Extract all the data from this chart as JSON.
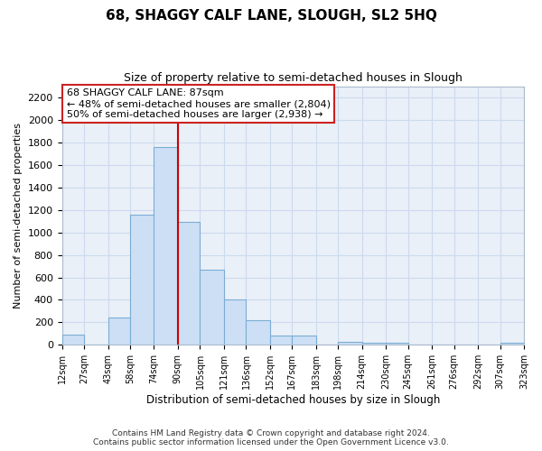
{
  "title": "68, SHAGGY CALF LANE, SLOUGH, SL2 5HQ",
  "subtitle": "Size of property relative to semi-detached houses in Slough",
  "xlabel": "Distribution of semi-detached houses by size in Slough",
  "ylabel": "Number of semi-detached properties",
  "bin_edges": [
    12,
    27,
    43,
    58,
    74,
    90,
    105,
    121,
    136,
    152,
    167,
    183,
    198,
    214,
    230,
    245,
    261,
    276,
    292,
    307,
    323
  ],
  "bin_labels": [
    "12sqm",
    "27sqm",
    "43sqm",
    "58sqm",
    "74sqm",
    "90sqm",
    "105sqm",
    "121sqm",
    "136sqm",
    "152sqm",
    "167sqm",
    "183sqm",
    "198sqm",
    "214sqm",
    "230sqm",
    "245sqm",
    "261sqm",
    "276sqm",
    "292sqm",
    "307sqm",
    "323sqm"
  ],
  "counts": [
    90,
    0,
    240,
    1160,
    1760,
    1090,
    670,
    400,
    220,
    85,
    80,
    0,
    30,
    20,
    15,
    0,
    0,
    0,
    0,
    20
  ],
  "bar_color": "#ccdff5",
  "bar_edge_color": "#7badd4",
  "vline_x": 90,
  "vline_color": "#cc0000",
  "annotation_title": "68 SHAGGY CALF LANE: 87sqm",
  "annotation_line1": "← 48% of semi-detached houses are smaller (2,804)",
  "annotation_line2": "50% of semi-detached houses are larger (2,938) →",
  "annotation_box_color": "#ffffff",
  "annotation_box_edge": "#cc2222",
  "ylim": [
    0,
    2300
  ],
  "yticks": [
    0,
    200,
    400,
    600,
    800,
    1000,
    1200,
    1400,
    1600,
    1800,
    2000,
    2200
  ],
  "background_color": "#ffffff",
  "grid_color": "#ccdaee",
  "footer_line1": "Contains HM Land Registry data © Crown copyright and database right 2024.",
  "footer_line2": "Contains public sector information licensed under the Open Government Licence v3.0."
}
